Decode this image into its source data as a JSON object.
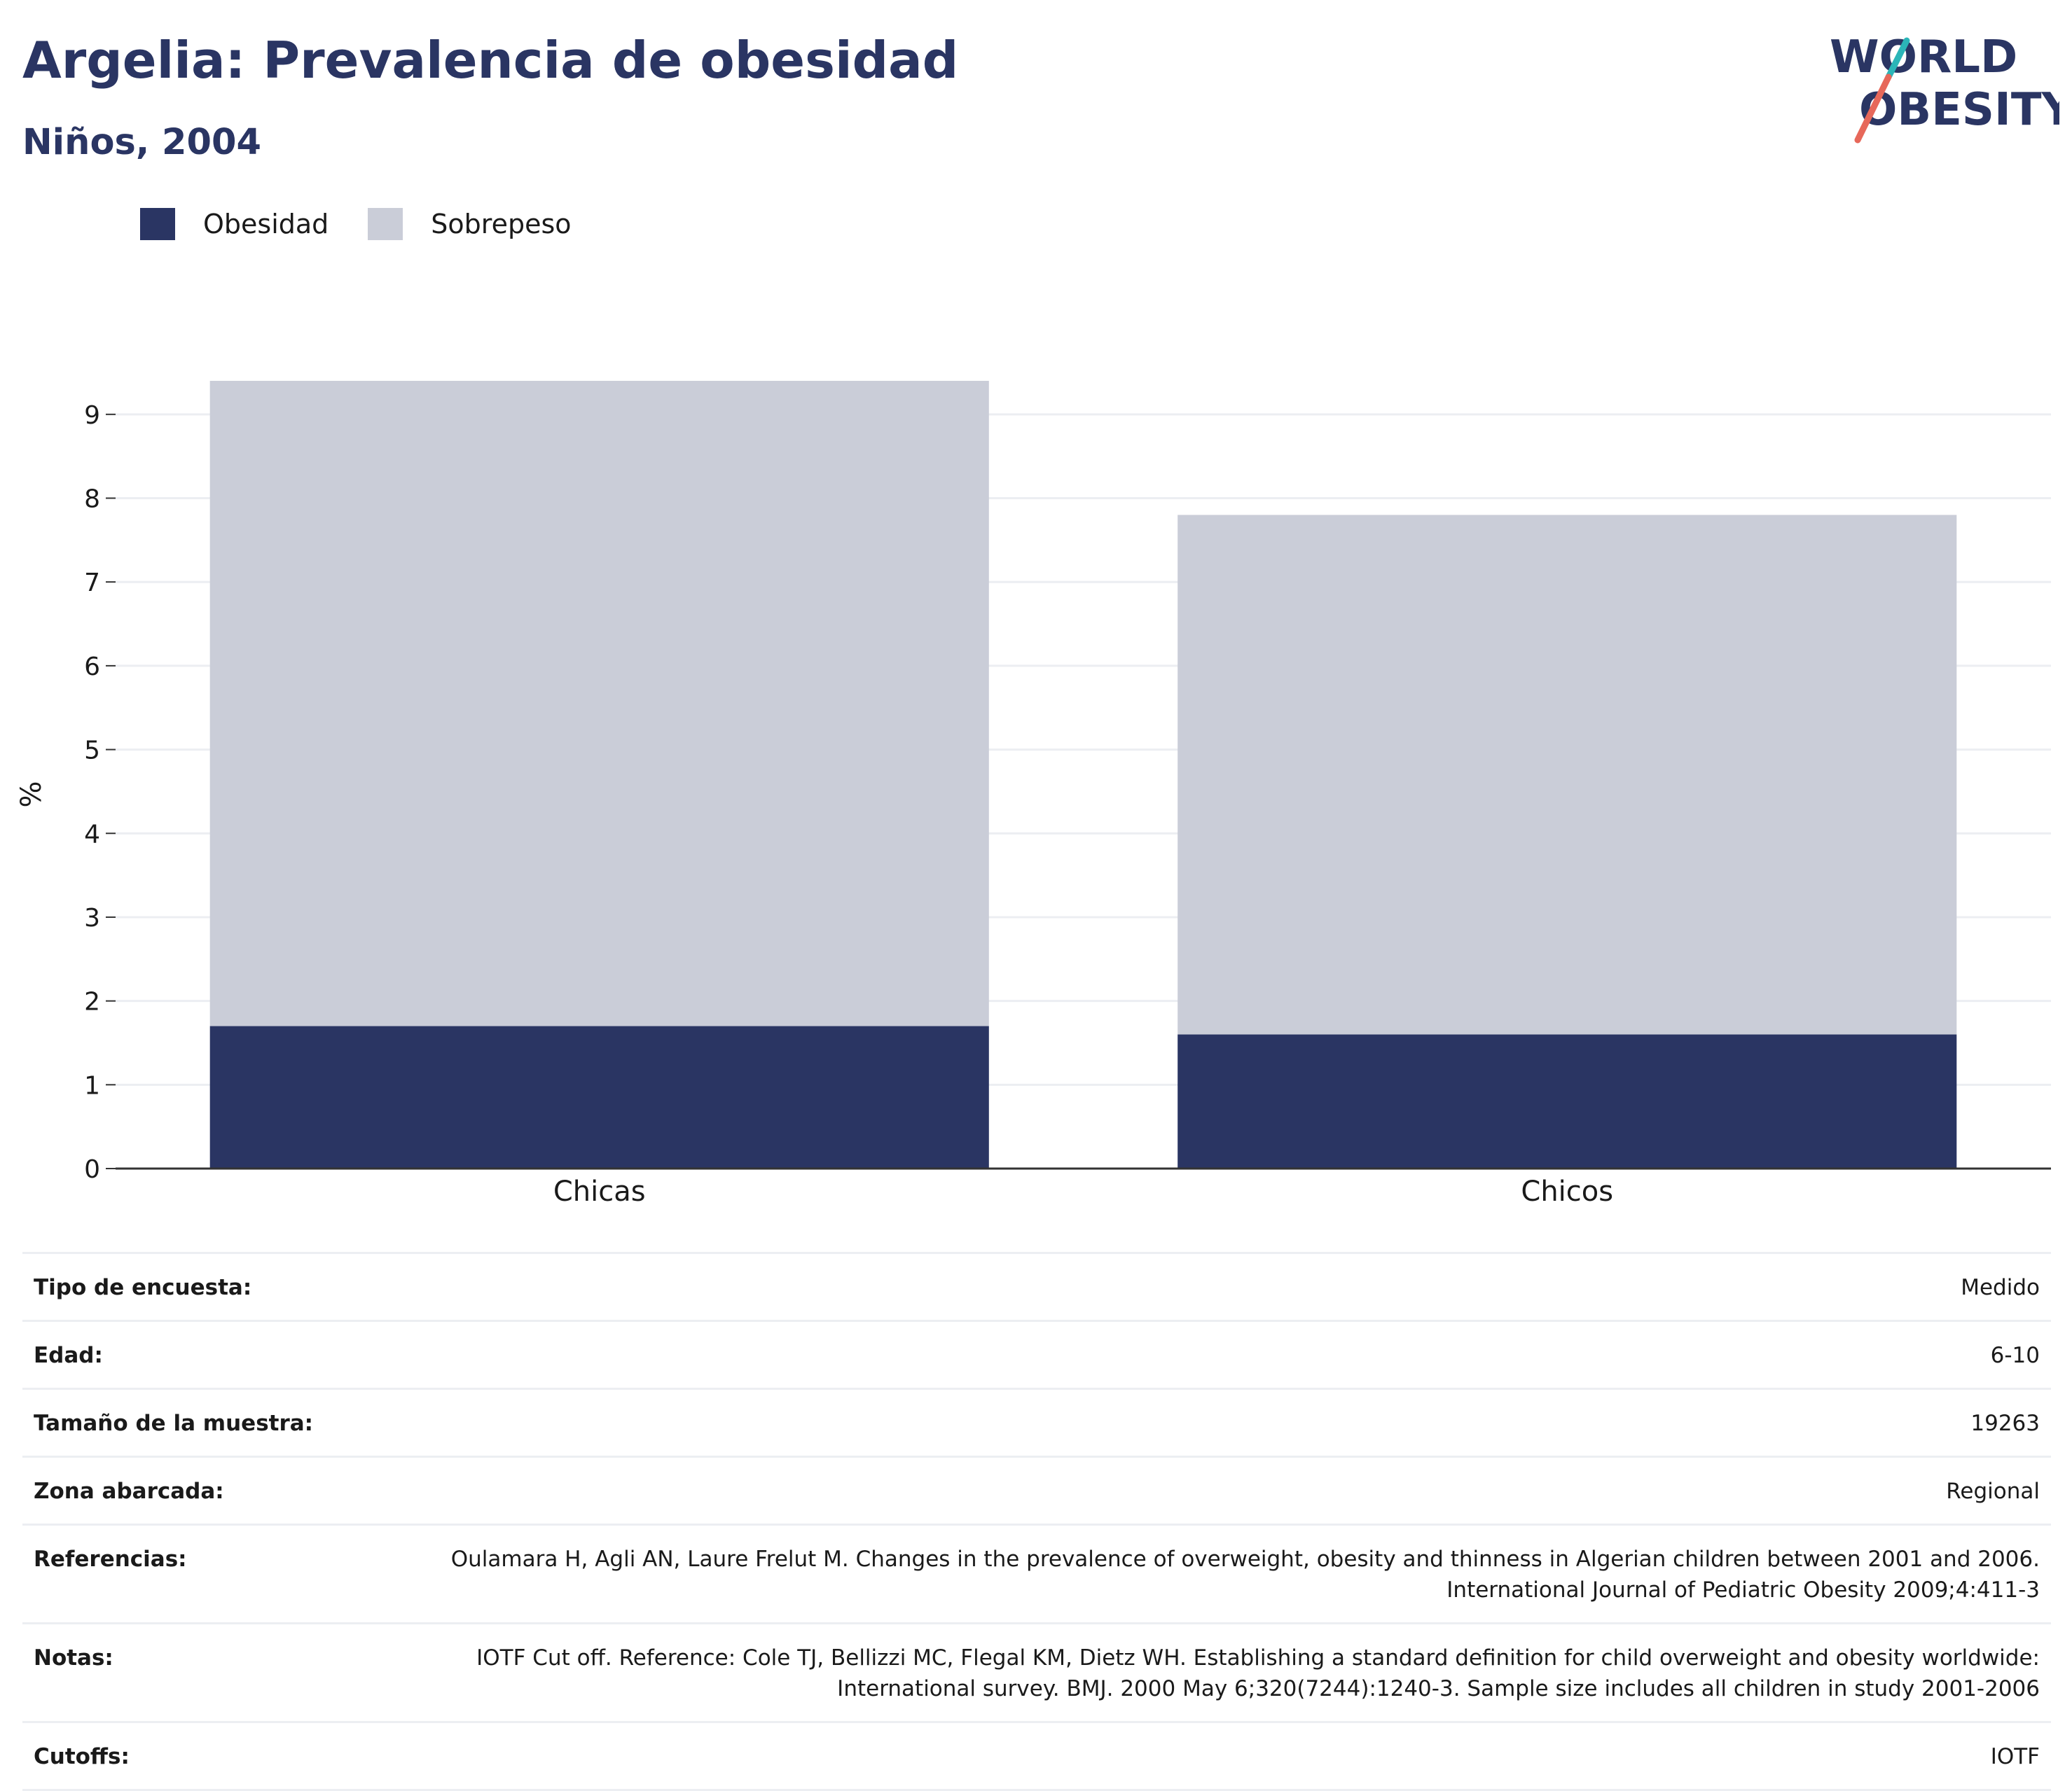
{
  "title": "Argelia: Prevalencia de obesidad",
  "subtitle": "Niños, 2004",
  "logo": {
    "line1": "WORLD",
    "line2": "OBESITY",
    "colors": {
      "text": "#2a3563",
      "slash_top": "#2bb5b8",
      "slash_bottom": "#e7685a"
    }
  },
  "colors": {
    "obesidad": "#2a3563",
    "sobrepeso": "#cacdd8",
    "grid": "#eceef2",
    "axis": "#333333"
  },
  "chart_data": {
    "type": "bar",
    "stacked": true,
    "categories": [
      "Chicas",
      "Chicos"
    ],
    "series": [
      {
        "name": "Obesidad",
        "values": [
          1.7,
          1.6
        ]
      },
      {
        "name": "Sobrepeso",
        "values": [
          7.7,
          6.2
        ]
      }
    ],
    "ylabel": "%",
    "xlabel": "",
    "ylim": [
      0,
      9.6
    ],
    "yticks": [
      "0",
      "1",
      "2",
      "3",
      "4",
      "5",
      "6",
      "7",
      "8",
      "9"
    ],
    "grid": true,
    "legend_position": "top-left"
  },
  "info_rows": [
    {
      "label": "Tipo de encuesta:",
      "value": "Medido"
    },
    {
      "label": "Edad:",
      "value": "6-10"
    },
    {
      "label": "Tamaño de la muestra:",
      "value": "19263"
    },
    {
      "label": "Zona abarcada:",
      "value": "Regional"
    },
    {
      "label": "Referencias:",
      "value": "Oulamara H, Agli AN, Laure Frelut M. Changes in the prevalence of overweight, obesity and thinness in Algerian children between 2001 and 2006. International Journal of Pediatric Obesity 2009;4:411-3"
    },
    {
      "label": "Notas:",
      "value": "IOTF Cut off. Reference: Cole TJ, Bellizzi MC, Flegal KM, Dietz WH. Establishing a standard definition for child overweight and obesity worldwide: International survey. BMJ. 2000 May 6;320(7244):1240-3. Sample size includes all children in study 2001-2006"
    },
    {
      "label": "Cutoffs:",
      "value": "IOTF"
    }
  ]
}
